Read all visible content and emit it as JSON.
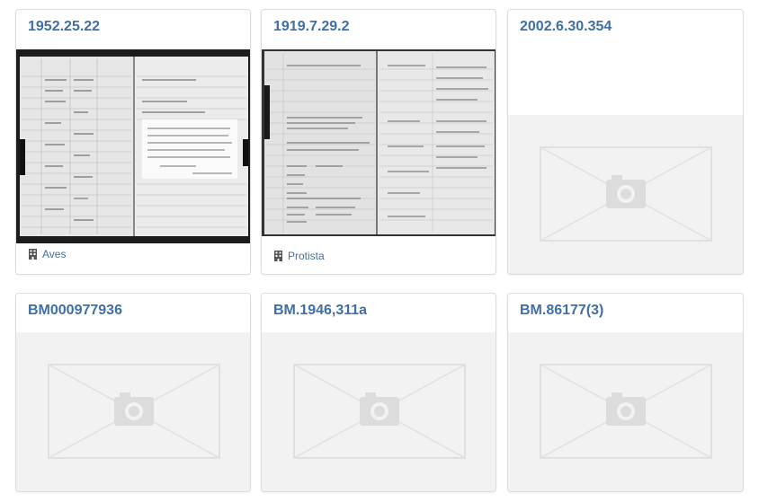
{
  "cards": [
    {
      "title": "1952.25.22",
      "tag": "Aves",
      "image": "ledger-photo"
    },
    {
      "title": "1919.7.29.2",
      "tag": "Protista",
      "image": "ledger-photo"
    },
    {
      "title": "2002.6.30.354",
      "image": "no-image-placeholder"
    },
    {
      "title": "BM000977936",
      "image": "no-image-placeholder"
    },
    {
      "title": "BM.1946,311a",
      "image": "no-image-placeholder"
    },
    {
      "title": "BM.86177(3)",
      "image": "no-image-placeholder"
    }
  ],
  "icons": {
    "tag_icon": "building-icon",
    "placeholder_icon": "camera-icon"
  },
  "colors": {
    "link": "#3f6fa6",
    "placeholder_bg": "#f2f2f2",
    "placeholder_mark": "#dcdcdc"
  }
}
